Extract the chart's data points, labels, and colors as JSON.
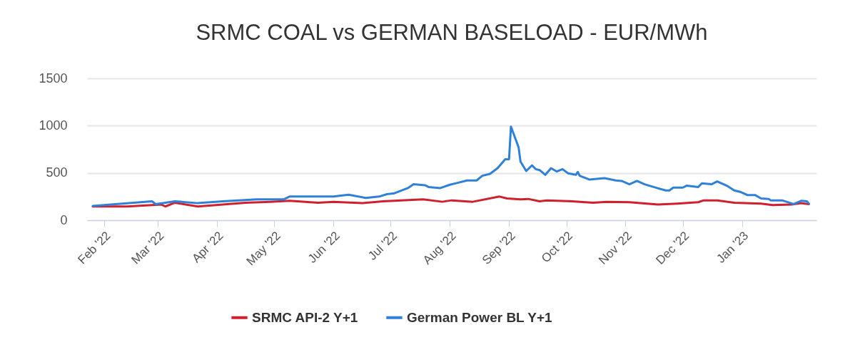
{
  "chart_data": {
    "type": "line",
    "title": "SRMC COAL vs GERMAN BASELOAD - EUR/MWh",
    "series": [
      {
        "name": "SRMC API-2 Y+1",
        "color": "#d0202e",
        "x": [
          "2022-01-26",
          "2022-02-13",
          "2022-03-03",
          "2022-03-05",
          "2022-03-10",
          "2022-03-22",
          "2022-04-16",
          "2022-04-29",
          "2022-05-09",
          "2022-05-24",
          "2022-06-01",
          "2022-06-16",
          "2022-06-27",
          "2022-07-18",
          "2022-07-28",
          "2022-08-02",
          "2022-08-13",
          "2022-08-27",
          "2022-08-31",
          "2022-09-07",
          "2022-09-11",
          "2022-09-17",
          "2022-09-21",
          "2022-10-04",
          "2022-10-15",
          "2022-10-22",
          "2022-11-03",
          "2022-11-18",
          "2022-11-28",
          "2022-12-09",
          "2022-12-12",
          "2022-12-19",
          "2022-12-28",
          "2023-01-11",
          "2023-01-17",
          "2023-01-27",
          "2023-02-01",
          "2023-02-05"
        ],
        "values": [
          145,
          145,
          165,
          145,
          185,
          145,
          185,
          195,
          205,
          185,
          195,
          180,
          200,
          220,
          195,
          210,
          195,
          250,
          230,
          220,
          225,
          200,
          210,
          200,
          185,
          195,
          190,
          165,
          175,
          190,
          210,
          210,
          185,
          175,
          160,
          165,
          180,
          170
        ]
      },
      {
        "name": "German Power BL Y+1",
        "color": "#2f80d9",
        "x": [
          "2022-01-26",
          "2022-02-26",
          "2022-02-28",
          "2022-03-10",
          "2022-03-22",
          "2022-04-04",
          "2022-04-22",
          "2022-05-06",
          "2022-05-09",
          "2022-05-24",
          "2022-06-01",
          "2022-06-09",
          "2022-06-18",
          "2022-06-25",
          "2022-06-29",
          "2022-07-03",
          "2022-07-10",
          "2022-07-13",
          "2022-07-19",
          "2022-07-21",
          "2022-07-27",
          "2022-08-01",
          "2022-08-05",
          "2022-08-10",
          "2022-08-15",
          "2022-08-18",
          "2022-08-22",
          "2022-08-26",
          "2022-08-30",
          "2022-09-01",
          "2022-09-02",
          "2022-09-06",
          "2022-09-07",
          "2022-09-10",
          "2022-09-13",
          "2022-09-15",
          "2022-09-17",
          "2022-09-20",
          "2022-09-23",
          "2022-09-26",
          "2022-09-29",
          "2022-10-02",
          "2022-10-06",
          "2022-10-07",
          "2022-10-08",
          "2022-10-13",
          "2022-10-21",
          "2022-10-27",
          "2022-10-30",
          "2022-11-03",
          "2022-11-07",
          "2022-11-11",
          "2022-11-16",
          "2022-11-22",
          "2022-11-24",
          "2022-11-26",
          "2022-12-01",
          "2022-12-03",
          "2022-12-09",
          "2022-12-11",
          "2022-12-16",
          "2022-12-19",
          "2022-12-24",
          "2022-12-28",
          "2022-12-31",
          "2023-01-04",
          "2023-01-08",
          "2023-01-11",
          "2023-01-15",
          "2023-01-16",
          "2023-01-22",
          "2023-01-28",
          "2023-02-01",
          "2023-02-04",
          "2023-02-05"
        ],
        "values": [
          150,
          200,
          170,
          200,
          180,
          200,
          220,
          220,
          250,
          250,
          250,
          270,
          235,
          250,
          275,
          285,
          340,
          380,
          370,
          350,
          340,
          375,
          395,
          420,
          420,
          470,
          490,
          550,
          645,
          645,
          990,
          770,
          620,
          520,
          580,
          540,
          530,
          480,
          550,
          515,
          540,
          495,
          480,
          510,
          470,
          430,
          445,
          420,
          415,
          380,
          415,
          380,
          350,
          315,
          315,
          345,
          345,
          365,
          350,
          390,
          380,
          410,
          365,
          315,
          300,
          265,
          265,
          230,
          225,
          210,
          210,
          170,
          205,
          200,
          175
        ]
      }
    ],
    "xlim": [
      "2022-01-23",
      "2023-02-09"
    ],
    "xticks": [
      {
        "value": "2022-02-01",
        "label": "Feb '22"
      },
      {
        "value": "2022-03-01",
        "label": "Mar '22"
      },
      {
        "value": "2022-04-01",
        "label": "Apr '22"
      },
      {
        "value": "2022-05-01",
        "label": "May '22"
      },
      {
        "value": "2022-06-01",
        "label": "Jun '22"
      },
      {
        "value": "2022-07-01",
        "label": "Jul '22"
      },
      {
        "value": "2022-08-01",
        "label": "Aug '22"
      },
      {
        "value": "2022-09-01",
        "label": "Sep '22"
      },
      {
        "value": "2022-10-01",
        "label": "Oct '22"
      },
      {
        "value": "2022-11-01",
        "label": "Nov '22"
      },
      {
        "value": "2022-12-01",
        "label": "Dec '22"
      },
      {
        "value": "2023-01-01",
        "label": "Jan '23"
      }
    ],
    "ylim": [
      0,
      1500
    ],
    "yticks": [
      0,
      500,
      1000,
      1500
    ],
    "grid": "y",
    "legend": "bottom",
    "line_style": "solid"
  }
}
